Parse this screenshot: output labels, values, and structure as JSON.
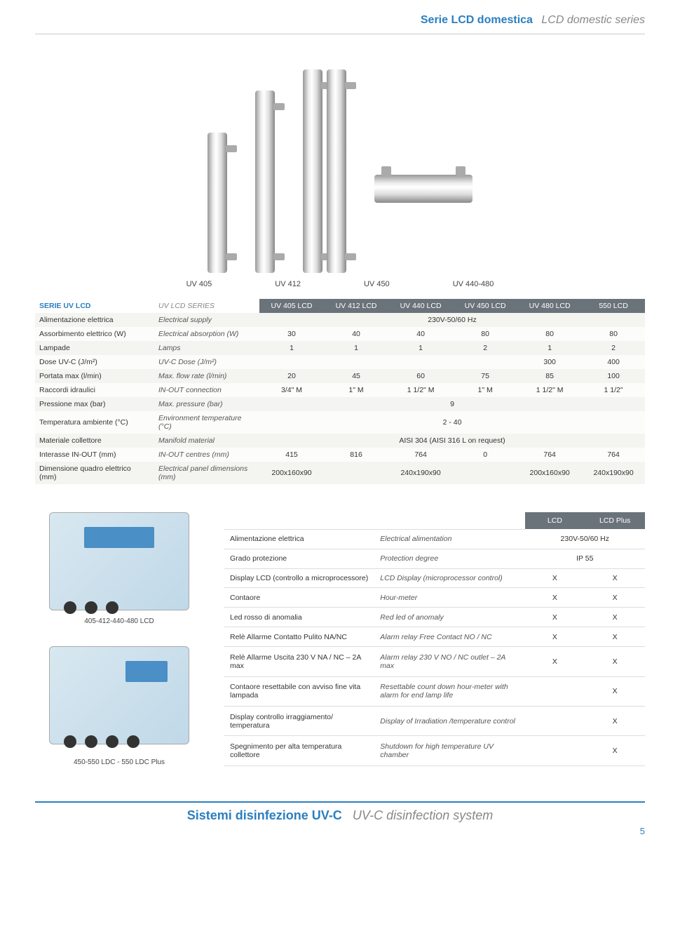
{
  "header": {
    "title_it": "Serie LCD domestica",
    "title_en": "LCD domestic series"
  },
  "product_labels": [
    "UV 405",
    "UV 412",
    "UV 450",
    "UV 440-480"
  ],
  "spec_table": {
    "series_label_it": "SERIE UV LCD",
    "series_label_en": "UV LCD SERIES",
    "columns": [
      "UV 405 LCD",
      "UV 412 LCD",
      "UV 440 LCD",
      "UV 450 LCD",
      "UV 480 LCD",
      "550 LCD"
    ],
    "rows": [
      {
        "it": "Alimentazione elettrica",
        "en": "Electrical supply",
        "values": [
          "230V-50/60 Hz"
        ],
        "span": 6
      },
      {
        "it": "Assorbimento elettrico (W)",
        "en": "Electrical absorption (W)",
        "values": [
          "30",
          "40",
          "40",
          "80",
          "80",
          "80"
        ]
      },
      {
        "it": "Lampade",
        "en": "Lamps",
        "values": [
          "1",
          "1",
          "1",
          "2",
          "1",
          "2"
        ]
      },
      {
        "it": "Dose UV-C (J/m²)",
        "en": "UV-C Dose (J/m²)",
        "values": [
          "",
          "",
          "",
          "",
          "300",
          "400"
        ]
      },
      {
        "it": "Portata max (l/min)",
        "en": "Max. flow rate (l/min)",
        "values": [
          "20",
          "45",
          "60",
          "75",
          "85",
          "100"
        ]
      },
      {
        "it": "Raccordi idraulici",
        "en": "IN-OUT connection",
        "values": [
          "3/4\" M",
          "1\" M",
          "1 1/2\" M",
          "1\" M",
          "1 1/2\" M",
          "1 1/2\""
        ]
      },
      {
        "it": "Pressione max (bar)",
        "en": "Max. pressure (bar)",
        "values": [
          "9"
        ],
        "span": 6
      },
      {
        "it": "Temperatura ambiente (°C)",
        "en": "Environment temperature (°C)",
        "values": [
          "2 - 40"
        ],
        "span": 6
      },
      {
        "it": "Materiale collettore",
        "en": "Manifold material",
        "values": [
          "AISI 304 (AISI 316 L on request)"
        ],
        "span": 6
      },
      {
        "it": "Interasse IN-OUT (mm)",
        "en": "IN-OUT centres (mm)",
        "values": [
          "415",
          "816",
          "764",
          "0",
          "764",
          "764"
        ]
      },
      {
        "it": "Dimensione quadro elettrico (mm)",
        "en": "Electrical panel dimensions (mm)",
        "values": [
          "200x160x90",
          "",
          "240x190x90",
          "",
          "200x160x90",
          "240x190x90"
        ]
      }
    ]
  },
  "device_captions": {
    "top": "405-412-440-480 LCD",
    "bottom": "450-550 LDC - 550 LDC Plus"
  },
  "feature_table": {
    "header_lcd": "LCD",
    "header_lcd_plus": "LCD Plus",
    "rows": [
      {
        "it": "Alimentazione elettrica",
        "en": "Electrical alimentation",
        "lcd": "230V-50/60 Hz",
        "span": 2
      },
      {
        "it": "Grado protezione",
        "en": "Protection degree",
        "lcd": "IP 55",
        "span": 2
      },
      {
        "it": "Display LCD\n(controllo a microprocessore)",
        "en": "LCD Display (microprocessor control)",
        "lcd": "X",
        "plus": "X"
      },
      {
        "it": "Contaore",
        "en": "Hour-meter",
        "lcd": "X",
        "plus": "X"
      },
      {
        "it": "Led rosso di anomalia",
        "en": "Red led of anomaly",
        "lcd": "X",
        "plus": "X"
      },
      {
        "it": "Relè Allarme Contatto Pulito NA/NC",
        "en": "Alarm relay Free Contact NO / NC",
        "lcd": "X",
        "plus": "X"
      },
      {
        "it": "Relè Allarme Uscita 230 V NA / NC – 2A max",
        "en": "Alarm relay 230 V NO / NC outlet – 2A max",
        "lcd": "X",
        "plus": "X"
      },
      {
        "it": "Contaore resettabile con avviso fine vita lampada",
        "en": "Resettable count down hour-meter with alarm for end lamp life",
        "lcd": "",
        "plus": "X"
      },
      {
        "it": "Display controllo irraggiamento/ temperatura",
        "en": "Display of Irradiation /temperature control",
        "lcd": "",
        "plus": "X"
      },
      {
        "it": "Spegnimento per alta temperatura collettore",
        "en": "Shutdown for high temperature UV chamber",
        "lcd": "",
        "plus": "X"
      }
    ]
  },
  "footer": {
    "title_it": "Sistemi disinfezione UV-C",
    "title_en": "UV-C disinfection system",
    "page_num": "5"
  }
}
